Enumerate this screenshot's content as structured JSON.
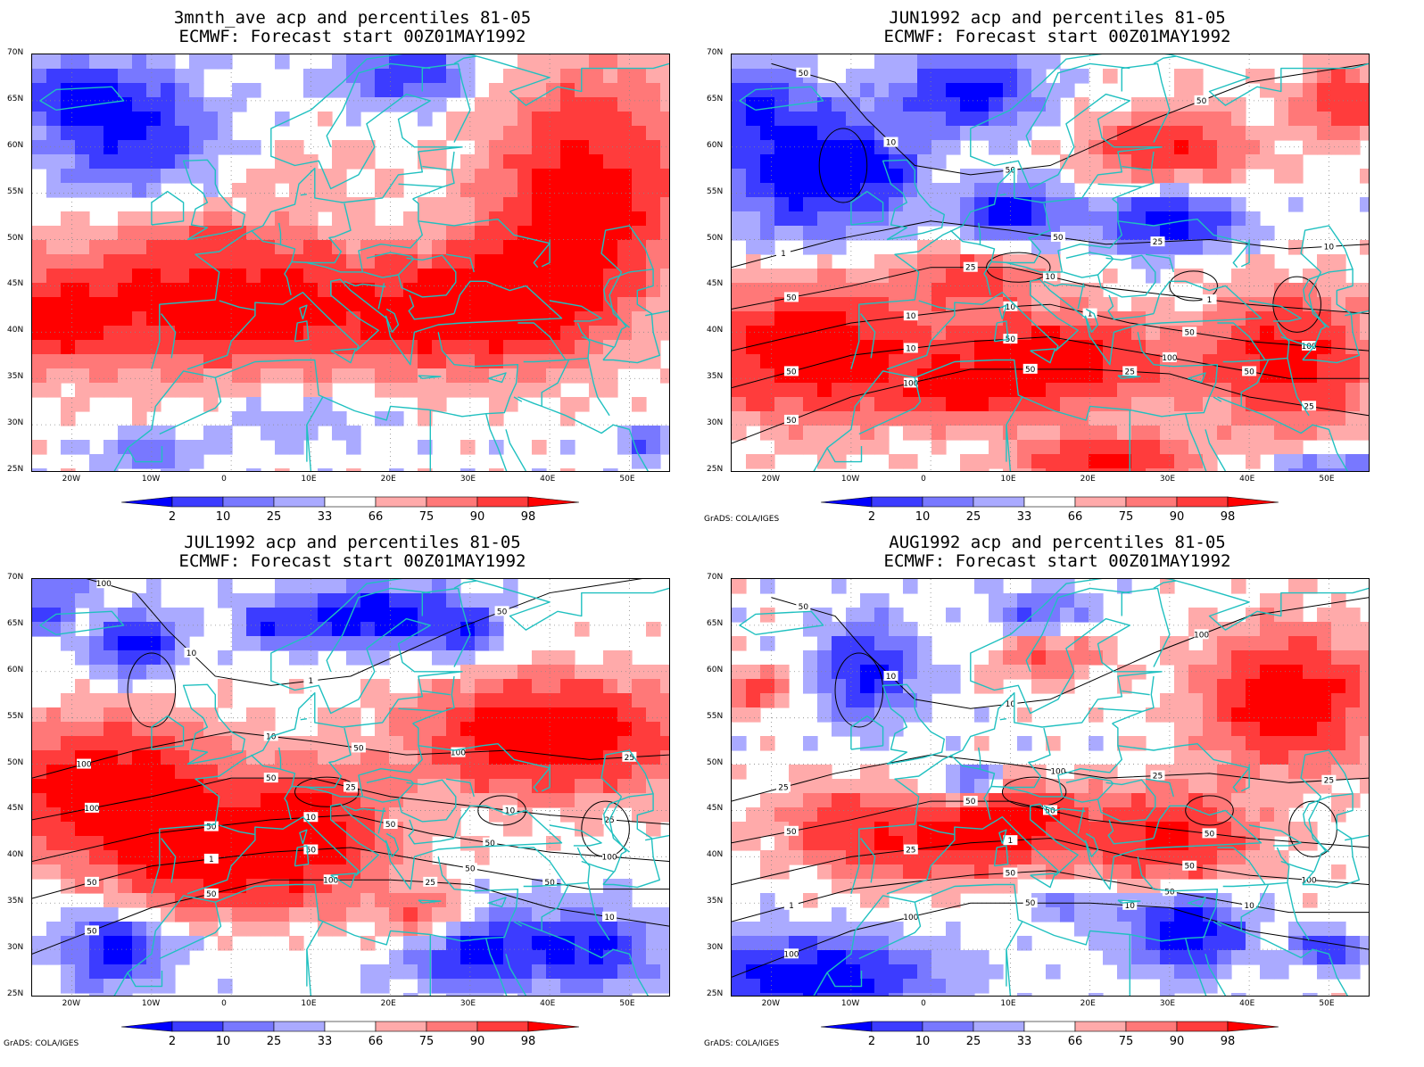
{
  "panels": [
    {
      "title_line1": "3mnth_ave acp and percentiles 81-05",
      "title_line2": "ECMWF: Forecast start 00Z01MAY1992",
      "credit": "",
      "contour_labels": []
    },
    {
      "title_line1": "JUN1992 acp and percentiles 81-05",
      "title_line2": "ECMWF: Forecast start 00Z01MAY1992",
      "credit": "GrADS: COLA/IGES",
      "contour_labels": [
        "50",
        "50",
        "50",
        "50",
        "50",
        "50",
        "100",
        "100",
        "100",
        "25",
        "25",
        "50",
        "50",
        "50",
        "10",
        "10",
        "10",
        "10",
        "25",
        "50",
        "10",
        "1",
        "1",
        "50",
        "25",
        "10",
        "1"
      ]
    },
    {
      "title_line1": "JUL1992 acp and percentiles 81-05",
      "title_line2": "ECMWF: Forecast start 00Z01MAY1992",
      "credit": "GrADS: COLA/IGES",
      "contour_labels": [
        "50",
        "50",
        "50",
        "100",
        "50",
        "50",
        "50",
        "50",
        "100",
        "50",
        "100",
        "100",
        "100",
        "50",
        "50",
        "25",
        "25",
        "10",
        "25",
        "50",
        "10",
        "10",
        "100",
        "1",
        "10",
        "1",
        "50",
        "25",
        "10"
      ]
    },
    {
      "title_line1": "AUG1992 acp and percentiles 81-05",
      "title_line2": "ECMWF: Forecast start 00Z01MAY1992",
      "credit": "GrADS: COLA/IGES",
      "contour_labels": [
        "100",
        "50",
        "50",
        "50",
        "100",
        "100",
        "100",
        "50",
        "100",
        "50",
        "25",
        "50",
        "50",
        "10",
        "25",
        "50",
        "25",
        "10",
        "10",
        "1",
        "1",
        "50",
        "25",
        "10"
      ]
    }
  ],
  "lat_labels": [
    "70N",
    "65N",
    "60N",
    "55N",
    "50N",
    "45N",
    "40N",
    "35N",
    "30N",
    "25N"
  ],
  "lon_labels": [
    "20W",
    "10W",
    "0",
    "10E",
    "20E",
    "30E",
    "40E",
    "50E"
  ],
  "colorbar": {
    "labels": [
      "2",
      "10",
      "25",
      "33",
      "66",
      "75",
      "90",
      "98"
    ],
    "colors": [
      "#0000ff",
      "#3c3cff",
      "#7878ff",
      "#aaaaff",
      "#ffffff",
      "#ffaaaa",
      "#ff7878",
      "#ff3c3c",
      "#ff0000"
    ]
  },
  "colors": {
    "coast": "#20c0c0",
    "contour": "#000000",
    "grid": "#888888"
  }
}
